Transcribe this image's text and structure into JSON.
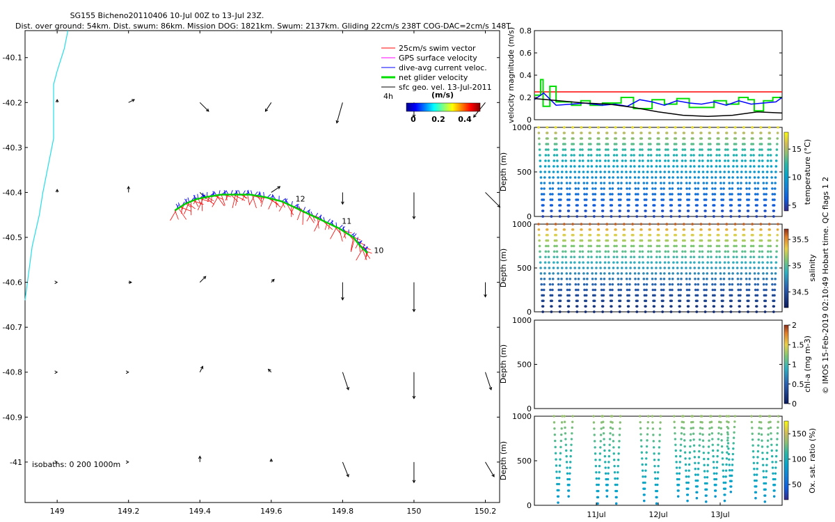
{
  "title": {
    "line1": "SG155 Bicheno20110406 10-Jul 00Z to 13-Jul 23Z.",
    "line2": "Dist. over ground: 54km. Dist. swum: 86km. Mission DOG: 1821km. Swum: 2137km. Gliding 22cm/s 238T COG-DAC=2cm/s 148T"
  },
  "footer_vertical": "© IMOS 15-Feb-2019 02:10:49 Hobart time. QC flags 1 2",
  "chart_data": [
    {
      "type": "scatter",
      "name": "map",
      "xlim": [
        148.91,
        150.24
      ],
      "ylim": [
        -41.09,
        -40.04
      ],
      "xticks": [
        149,
        149.2,
        149.4,
        149.6,
        149.8,
        150,
        150.2
      ],
      "xticklabels": [
        "149",
        "149.2",
        "149.4",
        "149.6",
        "149.8",
        "150",
        "150.2"
      ],
      "yticks": [
        -40.1,
        -40.2,
        -40.3,
        -40.4,
        -40.5,
        -40.6,
        -40.7,
        -40.8,
        -40.9,
        -41
      ],
      "yticklabels": [
        "-40.1",
        "-40.2",
        "-40.3",
        "-40.4",
        "-40.5",
        "-40.6",
        "-40.7",
        "-40.8",
        "-40.9",
        "-41"
      ],
      "legend": {
        "placement": "top-right",
        "entries": [
          {
            "label": "25cm/s swim vector",
            "color": "#ff0000"
          },
          {
            "label": "GPS surface velocity",
            "color": "#ff00ff"
          },
          {
            "label": "dive-avg current veloc.",
            "color": "#0000ff"
          },
          {
            "label": "net glider velocity",
            "color": "#00dd00"
          },
          {
            "label": "sfc geo. vel. 13-Jul-2011",
            "color": "#000000"
          }
        ]
      },
      "colorbar": {
        "label": "(m/s)",
        "time_label": "4h",
        "ticks": [
          0,
          0.2,
          0.4
        ],
        "ticklabels": [
          "0",
          "0.2",
          "0.4"
        ]
      },
      "isobath_label": "isobaths: 0   200  1000m",
      "isobath_coast": [
        [
          149.03,
          -40.04
        ],
        [
          149.02,
          -40.08
        ],
        [
          149.0,
          -40.13
        ],
        [
          148.99,
          -40.16
        ],
        [
          148.99,
          -40.2
        ],
        [
          148.99,
          -40.24
        ],
        [
          148.99,
          -40.28
        ],
        [
          148.98,
          -40.32
        ],
        [
          148.97,
          -40.36
        ],
        [
          148.96,
          -40.4
        ],
        [
          148.95,
          -40.45
        ],
        [
          148.93,
          -40.52
        ],
        [
          148.92,
          -40.58
        ],
        [
          148.91,
          -40.64
        ]
      ],
      "track": [
        [
          149.33,
          -40.44
        ],
        [
          149.36,
          -40.425
        ],
        [
          149.39,
          -40.415
        ],
        [
          149.42,
          -40.41
        ],
        [
          149.46,
          -40.405
        ],
        [
          149.5,
          -40.405
        ],
        [
          149.54,
          -40.405
        ],
        [
          149.58,
          -40.41
        ],
        [
          149.63,
          -40.42
        ],
        [
          149.67,
          -40.435
        ],
        [
          149.71,
          -40.45
        ],
        [
          149.75,
          -40.465
        ],
        [
          149.79,
          -40.48
        ],
        [
          149.83,
          -40.5
        ],
        [
          149.85,
          -40.52
        ],
        [
          149.87,
          -40.535
        ]
      ],
      "track_day_labels": [
        {
          "label": "10",
          "lon": 149.88,
          "lat": -40.535
        },
        {
          "label": "11",
          "lon": 149.79,
          "lat": -40.47
        },
        {
          "label": "12",
          "lon": 149.66,
          "lat": -40.42
        }
      ],
      "sfc_grid_lons": [
        149.0,
        149.2,
        149.4,
        149.6,
        149.8,
        150.0,
        150.2
      ],
      "sfc_grid_lats": [
        -40.2,
        -40.4,
        -40.6,
        -40.8,
        -41.0
      ],
      "sfc_vectors_u": [
        [
          0.0,
          0.02,
          0.03,
          -0.02,
          -0.02,
          0.0,
          -0.04
        ],
        [
          0.0,
          0.0,
          0.02,
          0.03,
          0.0,
          0.0,
          0.05
        ],
        [
          0.0,
          0.01,
          0.02,
          0.01,
          0.0,
          0.0,
          0.0
        ],
        [
          0.0,
          0.0,
          0.01,
          -0.01,
          0.02,
          0.0,
          0.02
        ],
        [
          0.0,
          0.0,
          0.0,
          0.0,
          0.02,
          0.0,
          0.03
        ]
      ],
      "sfc_vectors_v": [
        [
          0.01,
          0.01,
          -0.03,
          -0.03,
          -0.07,
          -0.05,
          -0.05
        ],
        [
          0.01,
          0.02,
          -0.02,
          0.02,
          -0.04,
          -0.09,
          -0.05
        ],
        [
          0.0,
          0.0,
          0.02,
          0.01,
          -0.06,
          -0.1,
          -0.05
        ],
        [
          0.0,
          0.0,
          0.02,
          0.01,
          -0.06,
          -0.09,
          -0.06
        ],
        [
          0.0,
          0.0,
          0.02,
          0.01,
          -0.05,
          -0.07,
          -0.05
        ]
      ]
    },
    {
      "type": "line",
      "name": "velocity-magnitude",
      "xlim": [
        0,
        4
      ],
      "ylim": [
        0,
        0.8
      ],
      "ylabel": "velocity magnitude (m/s)",
      "yticks": [
        0,
        0.2,
        0.4,
        0.6,
        0.8
      ],
      "yticklabels": [
        "0",
        "0.2",
        "0.4",
        "0.6",
        "0.8"
      ],
      "series": [
        {
          "color": "#ff0000",
          "x": [
            0,
            4
          ],
          "values": [
            0.25,
            0.25
          ]
        },
        {
          "color": "#00dd00",
          "style": "step",
          "x": [
            0,
            0.1,
            0.14,
            0.25,
            0.35,
            0.6,
            0.75,
            0.9,
            1.1,
            1.4,
            1.6,
            1.9,
            2.1,
            2.3,
            2.5,
            2.9,
            3.1,
            3.3,
            3.45,
            3.55,
            3.7,
            3.85,
            4.0
          ],
          "values": [
            0.22,
            0.36,
            0.12,
            0.3,
            0.16,
            0.13,
            0.17,
            0.13,
            0.15,
            0.2,
            0.1,
            0.18,
            0.14,
            0.19,
            0.11,
            0.17,
            0.14,
            0.2,
            0.18,
            0.08,
            0.17,
            0.2,
            0.2
          ]
        },
        {
          "color": "#0000ff",
          "x": [
            0,
            0.15,
            0.35,
            0.6,
            0.8,
            1.1,
            1.3,
            1.5,
            1.7,
            1.9,
            2.1,
            2.3,
            2.5,
            2.7,
            2.9,
            3.1,
            3.3,
            3.5,
            3.7,
            3.9,
            4.0
          ],
          "values": [
            0.18,
            0.24,
            0.13,
            0.14,
            0.15,
            0.13,
            0.14,
            0.12,
            0.18,
            0.16,
            0.13,
            0.17,
            0.15,
            0.14,
            0.16,
            0.13,
            0.17,
            0.14,
            0.15,
            0.16,
            0.2
          ]
        },
        {
          "color": "#000000",
          "x": [
            0,
            0.4,
            0.8,
            1.2,
            1.6,
            2.0,
            2.4,
            2.8,
            3.2,
            3.6,
            4.0
          ],
          "values": [
            0.19,
            0.17,
            0.15,
            0.14,
            0.11,
            0.07,
            0.04,
            0.03,
            0.04,
            0.07,
            0.06
          ]
        }
      ]
    },
    {
      "type": "scatter",
      "name": "temperature-section",
      "xlim": [
        0,
        4
      ],
      "ylim": [
        1000,
        0
      ],
      "ylabel": "Depth (m)",
      "yticks": [
        0,
        500,
        1000
      ],
      "yticklabels": [
        "0",
        "500",
        "1000"
      ],
      "colorbar": {
        "label": "temperature (°C)",
        "range": [
          4,
          18
        ],
        "ticks": [
          5,
          10,
          15
        ],
        "ticklabels": [
          "5",
          "10",
          "15"
        ]
      },
      "profile": {
        "dives": 28,
        "max_depth": 1000,
        "surface_value": 17,
        "bottom_value": 5
      }
    },
    {
      "type": "scatter",
      "name": "salinity-section",
      "xlim": [
        0,
        4
      ],
      "ylim": [
        1000,
        0
      ],
      "ylabel": "Depth (m)",
      "yticks": [
        0,
        500,
        1000
      ],
      "yticklabels": [
        "0",
        "500",
        "1000"
      ],
      "colorbar": {
        "label": "salinity",
        "range": [
          34.2,
          35.7
        ],
        "ticks": [
          34.5,
          35,
          35.5
        ],
        "ticklabels": [
          "34.5",
          "35",
          "35.5"
        ]
      },
      "profile": {
        "dives": 28,
        "max_depth": 1000,
        "surface_value": 35.6,
        "bottom_value": 34.3
      }
    },
    {
      "type": "scatter",
      "name": "chlorophyll-section",
      "xlim": [
        0,
        4
      ],
      "ylim": [
        1000,
        0
      ],
      "ylabel": "Depth (m)",
      "yticks": [
        0,
        500,
        1000
      ],
      "yticklabels": [
        "0",
        "500",
        "1000"
      ],
      "colorbar": {
        "label": "chl-a (mg m-3)",
        "range": [
          0,
          2
        ],
        "ticks": [
          0,
          0.5,
          1,
          1.5,
          2
        ],
        "ticklabels": [
          "0",
          "0.5",
          "1",
          "1.5",
          "2"
        ]
      }
    },
    {
      "type": "scatter",
      "name": "oxygen-section",
      "xlim": [
        0,
        4
      ],
      "ylim": [
        1000,
        0
      ],
      "ylabel": "Depth (m)",
      "yticks": [
        0,
        500,
        1000
      ],
      "yticklabels": [
        "0",
        "500",
        "1000"
      ],
      "xticks": [
        1,
        2,
        3
      ],
      "xticklabels": [
        "11Jul",
        "12Jul",
        "13Jul"
      ],
      "colorbar": {
        "label": "Ox. sat. ratio (%)",
        "range": [
          20,
          175
        ],
        "ticks": [
          50,
          100,
          150
        ],
        "ticklabels": [
          "50",
          "100",
          "150"
        ]
      },
      "dives": [
        {
          "x": 0.36,
          "depth": 970
        },
        {
          "x": 0.53,
          "depth": 900
        },
        {
          "x": 1.0,
          "depth": 980
        },
        {
          "x": 1.15,
          "depth": 900
        },
        {
          "x": 1.3,
          "depth": 980
        },
        {
          "x": 1.75,
          "depth": 950
        },
        {
          "x": 1.95,
          "depth": 980
        },
        {
          "x": 2.3,
          "depth": 900
        },
        {
          "x": 2.45,
          "depth": 950
        },
        {
          "x": 2.6,
          "depth": 920
        },
        {
          "x": 2.75,
          "depth": 960
        },
        {
          "x": 2.9,
          "depth": 900
        },
        {
          "x": 3.05,
          "depth": 950
        },
        {
          "x": 3.15,
          "depth": 850
        },
        {
          "x": 3.55,
          "depth": 920
        },
        {
          "x": 3.7,
          "depth": 960
        },
        {
          "x": 3.85,
          "depth": 900
        }
      ]
    }
  ]
}
